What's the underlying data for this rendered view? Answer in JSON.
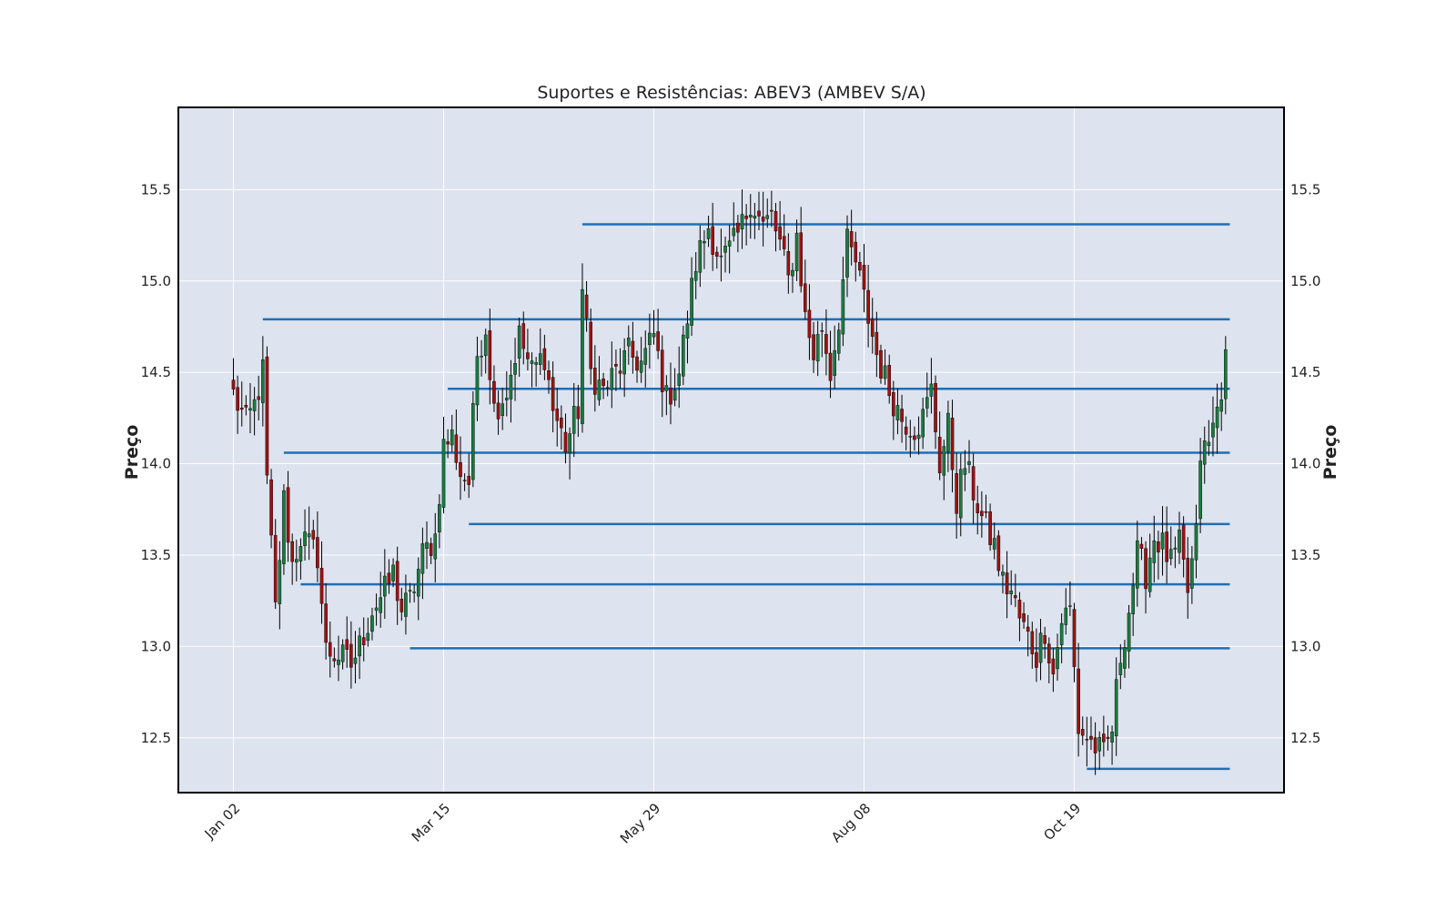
{
  "chart_data": {
    "type": "candlestick",
    "title": "Suportes e Resistências: ABEV3 (AMBEV S/A)",
    "ylabel": "Preço",
    "ylabel_right": "Preço",
    "ylim": [
      12.2,
      15.95
    ],
    "y_ticks": [
      12.5,
      13.0,
      13.5,
      14.0,
      14.5,
      15.0,
      15.5
    ],
    "y_tick_labels": [
      "12.5",
      "13.0",
      "13.5",
      "14.0",
      "14.5",
      "15.0",
      "15.5"
    ],
    "x_ticks": [
      {
        "label": "Jan 02",
        "index": 0
      },
      {
        "label": "Mar 15",
        "index": 50
      },
      {
        "label": "May 29",
        "index": 100
      },
      {
        "label": "Aug 08",
        "index": 150
      },
      {
        "label": "Oct 19",
        "index": 200
      }
    ],
    "n_bars": 237,
    "grid": true,
    "colors": {
      "background": "#dde3ef",
      "grid": "#ffffff",
      "up": "#1b7a3f",
      "down": "#9c1212",
      "wick": "#000000",
      "level": "#1f6fb5",
      "frame": "#000000"
    },
    "close_path": [
      [
        0,
        14.38
      ],
      [
        3,
        14.22
      ],
      [
        5,
        14.32
      ],
      [
        7,
        14.5
      ],
      [
        8,
        13.9
      ],
      [
        10,
        13.2
      ],
      [
        12,
        13.8
      ],
      [
        14,
        13.45
      ],
      [
        16,
        13.6
      ],
      [
        18,
        13.55
      ],
      [
        20,
        13.5
      ],
      [
        22,
        12.98
      ],
      [
        25,
        12.95
      ],
      [
        28,
        12.9
      ],
      [
        30,
        13.0
      ],
      [
        33,
        13.2
      ],
      [
        36,
        13.3
      ],
      [
        38,
        13.4
      ],
      [
        40,
        13.2
      ],
      [
        42,
        13.25
      ],
      [
        45,
        13.5
      ],
      [
        48,
        13.6
      ],
      [
        50,
        14.1
      ],
      [
        52,
        14.15
      ],
      [
        54,
        13.95
      ],
      [
        56,
        13.9
      ],
      [
        58,
        14.6
      ],
      [
        60,
        14.75
      ],
      [
        62,
        14.3
      ],
      [
        65,
        14.4
      ],
      [
        68,
        14.7
      ],
      [
        71,
        14.5
      ],
      [
        74,
        14.6
      ],
      [
        76,
        14.3
      ],
      [
        79,
        14.1
      ],
      [
        82,
        14.3
      ],
      [
        83,
        14.95
      ],
      [
        85,
        14.5
      ],
      [
        88,
        14.4
      ],
      [
        91,
        14.5
      ],
      [
        94,
        14.6
      ],
      [
        97,
        14.55
      ],
      [
        100,
        14.7
      ],
      [
        103,
        14.35
      ],
      [
        106,
        14.5
      ],
      [
        108,
        14.8
      ],
      [
        110,
        15.1
      ],
      [
        113,
        15.3
      ],
      [
        116,
        15.1
      ],
      [
        119,
        15.2
      ],
      [
        121,
        15.3
      ],
      [
        123,
        15.45
      ],
      [
        126,
        15.3
      ],
      [
        128,
        15.35
      ],
      [
        130,
        15.2
      ],
      [
        132,
        15.0
      ],
      [
        134,
        15.25
      ],
      [
        136,
        14.8
      ],
      [
        138,
        14.6
      ],
      [
        140,
        14.75
      ],
      [
        142,
        14.5
      ],
      [
        144,
        14.8
      ],
      [
        146,
        15.2
      ],
      [
        148,
        15.1
      ],
      [
        150,
        14.9
      ],
      [
        153,
        14.6
      ],
      [
        156,
        14.4
      ],
      [
        159,
        14.25
      ],
      [
        162,
        14.2
      ],
      [
        164,
        14.25
      ],
      [
        166,
        14.4
      ],
      [
        168,
        14.0
      ],
      [
        170,
        14.2
      ],
      [
        172,
        13.8
      ],
      [
        174,
        14.0
      ],
      [
        176,
        13.85
      ],
      [
        178,
        13.7
      ],
      [
        181,
        13.55
      ],
      [
        183,
        13.35
      ],
      [
        185,
        13.3
      ],
      [
        187,
        13.15
      ],
      [
        189,
        13.05
      ],
      [
        191,
        12.95
      ],
      [
        193,
        13.1
      ],
      [
        195,
        12.85
      ],
      [
        197,
        13.15
      ],
      [
        199,
        13.2
      ],
      [
        201,
        12.55
      ],
      [
        203,
        12.5
      ],
      [
        205,
        12.45
      ],
      [
        207,
        12.4
      ],
      [
        209,
        12.55
      ],
      [
        211,
        12.95
      ],
      [
        213,
        13.2
      ],
      [
        215,
        13.5
      ],
      [
        217,
        13.4
      ],
      [
        219,
        13.6
      ],
      [
        221,
        13.55
      ],
      [
        223,
        13.45
      ],
      [
        225,
        13.55
      ],
      [
        227,
        13.3
      ],
      [
        229,
        13.6
      ],
      [
        230,
        14.05
      ],
      [
        232,
        14.1
      ],
      [
        234,
        14.3
      ],
      [
        236,
        14.55
      ]
    ],
    "levels": [
      {
        "value": 15.31,
        "start_index": 83
      },
      {
        "value": 14.79,
        "start_index": 7
      },
      {
        "value": 14.41,
        "start_index": 51
      },
      {
        "value": 14.06,
        "start_index": 12
      },
      {
        "value": 13.67,
        "start_index": 56
      },
      {
        "value": 13.34,
        "start_index": 16
      },
      {
        "value": 12.99,
        "start_index": 42
      },
      {
        "value": 12.33,
        "start_index": 203
      }
    ],
    "level_end_index": 237
  }
}
